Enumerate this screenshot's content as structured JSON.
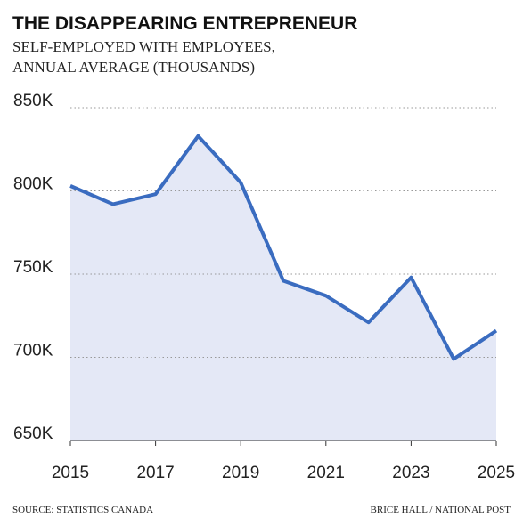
{
  "chart_data": {
    "type": "area-line",
    "title": "THE DISAPPEARING ENTREPRENEUR",
    "subtitle": [
      "SELF-EMPLOYED WITH EMPLOYEES,",
      "ANNUAL AVERAGE (THOUSANDS)"
    ],
    "x": [
      2015,
      2016,
      2017,
      2018,
      2019,
      2020,
      2021,
      2022,
      2023,
      2024,
      2025
    ],
    "values": [
      803,
      792,
      798,
      833,
      805,
      746,
      737,
      721,
      748,
      699,
      716
    ],
    "color": "#3a6cc0",
    "fill_color": "#e4e8f6",
    "xlim": [
      2015,
      2025
    ],
    "xticks": [
      2015,
      2017,
      2019,
      2021,
      2023,
      2025
    ],
    "ylim": [
      650,
      850
    ],
    "yticks": [
      {
        "value": 650,
        "label": "650K"
      },
      {
        "value": 700,
        "label": "700K"
      },
      {
        "value": 750,
        "label": "750K"
      },
      {
        "value": 800,
        "label": "800K"
      },
      {
        "value": 850,
        "label": "850K"
      }
    ],
    "grid": true,
    "source": "SOURCE: STATISTICS CANADA",
    "credit": "BRICE HALL / NATIONAL POST"
  }
}
